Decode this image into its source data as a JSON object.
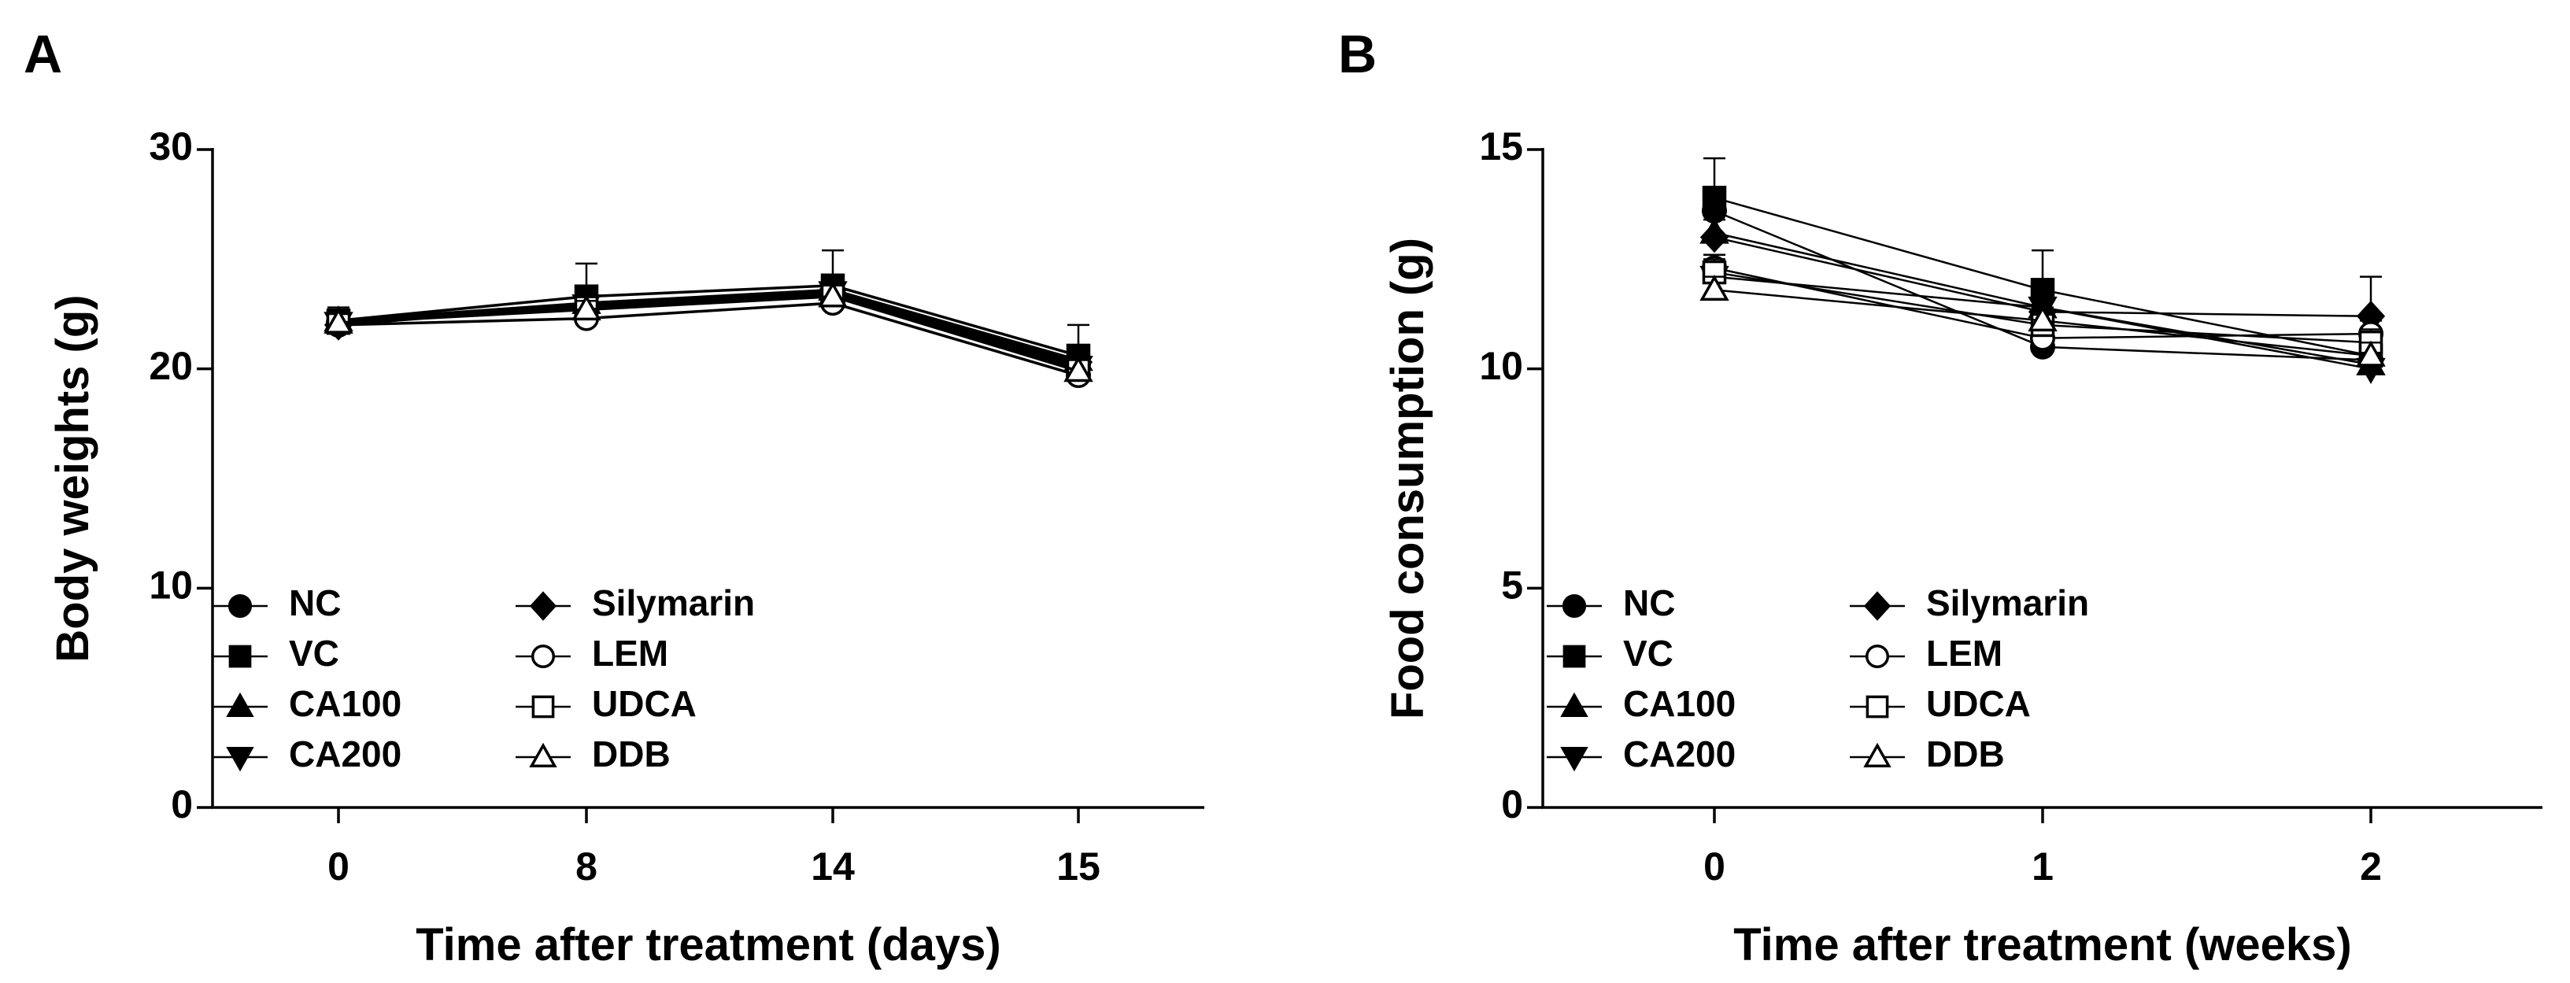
{
  "chart_data": [
    {
      "panel": "A",
      "type": "line",
      "title": "",
      "xlabel": "Time after treatment (days)",
      "ylabel": "Body weights (g)",
      "categories": [
        "0",
        "8",
        "14",
        "15"
      ],
      "yticks": [
        "0",
        "10",
        "20",
        "30"
      ],
      "ylim": [
        0,
        30
      ],
      "grid": false,
      "legend_position": "bottom-left",
      "series": [
        {
          "name": "NC",
          "marker": "circle-filled",
          "values": [
            22.1,
            22.8,
            23.5,
            20.2
          ],
          "errors": [
            0.3,
            0.4,
            0.4,
            0.5
          ]
        },
        {
          "name": "VC",
          "marker": "square-filled",
          "values": [
            22.2,
            23.3,
            23.8,
            20.6
          ],
          "errors": [
            0.5,
            1.5,
            1.6,
            1.4
          ]
        },
        {
          "name": "CA100",
          "marker": "triangle-up-filled",
          "values": [
            22.2,
            23.0,
            23.6,
            20.4
          ],
          "errors": [
            0.6,
            0.5,
            0.5,
            0.5
          ]
        },
        {
          "name": "CA200",
          "marker": "triangle-down-filled",
          "values": [
            22.1,
            22.9,
            23.5,
            20.1
          ],
          "errors": [
            0.5,
            0.5,
            0.5,
            0.5
          ]
        },
        {
          "name": "Silymarin",
          "marker": "diamond-filled",
          "values": [
            22.0,
            22.9,
            23.6,
            20.3
          ],
          "errors": [
            0.4,
            0.4,
            0.5,
            0.5
          ]
        },
        {
          "name": "LEM",
          "marker": "circle-open",
          "values": [
            22.0,
            22.3,
            23.0,
            19.7
          ],
          "errors": [
            0.4,
            0.4,
            0.5,
            0.5
          ]
        },
        {
          "name": "UDCA",
          "marker": "square-open",
          "values": [
            22.1,
            22.8,
            23.4,
            20.0
          ],
          "errors": [
            0.4,
            0.4,
            0.5,
            0.5
          ]
        },
        {
          "name": "DDB",
          "marker": "triangle-up-open",
          "values": [
            22.1,
            22.7,
            23.3,
            19.9
          ],
          "errors": [
            0.4,
            0.4,
            0.5,
            0.5
          ]
        }
      ]
    },
    {
      "panel": "B",
      "type": "line",
      "title": "",
      "xlabel": "Time after treatment (weeks)",
      "ylabel": "Food consumption (g)",
      "categories": [
        "0",
        "1",
        "2"
      ],
      "yticks": [
        "0",
        "5",
        "10",
        "15"
      ],
      "ylim": [
        0,
        15
      ],
      "grid": false,
      "legend_position": "bottom-left",
      "series": [
        {
          "name": "NC",
          "marker": "circle-filled",
          "values": [
            13.6,
            10.5,
            10.2
          ],
          "errors": [
            0.4,
            0.3,
            0.3
          ]
        },
        {
          "name": "VC",
          "marker": "square-filled",
          "values": [
            13.9,
            11.8,
            10.3
          ],
          "errors": [
            0.9,
            0.9,
            0.5
          ]
        },
        {
          "name": "CA100",
          "marker": "triangle-up-filled",
          "values": [
            13.1,
            11.4,
            10.1
          ],
          "errors": [
            0.4,
            0.4,
            0.3
          ]
        },
        {
          "name": "CA200",
          "marker": "triangle-down-filled",
          "values": [
            12.1,
            11.4,
            10.0
          ],
          "errors": [
            0.3,
            0.4,
            0.3
          ]
        },
        {
          "name": "Silymarin",
          "marker": "diamond-filled",
          "values": [
            13.0,
            11.3,
            11.2
          ],
          "errors": [
            0.4,
            0.4,
            0.9
          ]
        },
        {
          "name": "LEM",
          "marker": "circle-open",
          "values": [
            12.3,
            10.7,
            10.8
          ],
          "errors": [
            0.3,
            0.3,
            0.3
          ]
        },
        {
          "name": "UDCA",
          "marker": "square-open",
          "values": [
            12.2,
            11.0,
            10.6
          ],
          "errors": [
            0.3,
            0.3,
            0.3
          ]
        },
        {
          "name": "DDB",
          "marker": "triangle-up-open",
          "values": [
            11.8,
            11.1,
            10.3
          ],
          "errors": [
            0.3,
            0.3,
            0.3
          ]
        }
      ]
    }
  ]
}
